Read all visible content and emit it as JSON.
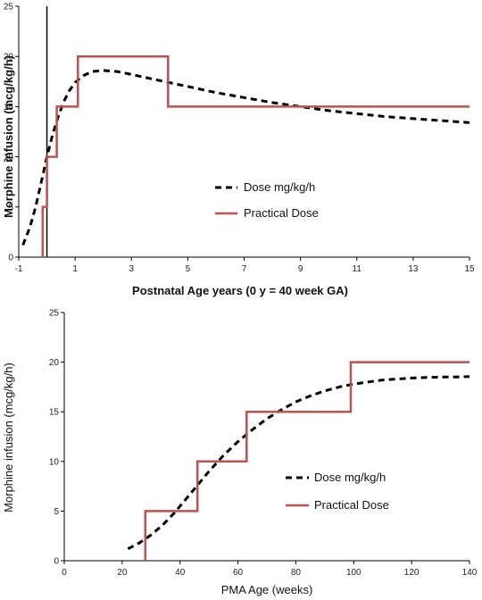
{
  "chart_data": [
    {
      "type": "line",
      "xlabel": "Postnatal Age years (0 y = 40 week GA)",
      "ylabel": "Morphine infusion (mcg/kg/h)",
      "xlim": [
        -1,
        15
      ],
      "ylim": [
        0,
        25
      ],
      "xticks": [
        -1,
        1,
        3,
        5,
        7,
        9,
        11,
        13,
        15
      ],
      "yticks": [
        0,
        5,
        10,
        15,
        20,
        25
      ],
      "grid": false,
      "legend_position": "center-left",
      "zero_line": {
        "x": 0,
        "color": "#000000"
      },
      "series": [
        {
          "name": "Dose mg/kg/h",
          "style": "dashed",
          "color": "#000000",
          "x": [
            -0.85,
            -0.6,
            -0.4,
            -0.2,
            0,
            0.2,
            0.4,
            0.6,
            0.8,
            1.0,
            1.3,
            1.6,
            2.0,
            2.5,
            3.0,
            3.5,
            4.0,
            5.0,
            6.0,
            7.0,
            8.0,
            9.0,
            10.0,
            11.0,
            12.0,
            13.0,
            14.0,
            15.0
          ],
          "y": [
            1.2,
            3.0,
            5.0,
            7.5,
            10.0,
            12.2,
            14.0,
            15.5,
            16.6,
            17.4,
            18.1,
            18.5,
            18.6,
            18.5,
            18.2,
            17.9,
            17.6,
            17.0,
            16.4,
            15.9,
            15.4,
            15.0,
            14.6,
            14.3,
            14.0,
            13.8,
            13.6,
            13.4
          ]
        },
        {
          "name": "Practical Dose",
          "style": "step",
          "color": "#c0504d",
          "x": [
            -0.15,
            -0.15,
            0.0,
            0.0,
            0.35,
            0.35,
            1.1,
            1.1,
            4.3,
            4.3,
            15.0
          ],
          "y": [
            0,
            5,
            5,
            10,
            10,
            15,
            15,
            20,
            20,
            15,
            15
          ]
        }
      ]
    },
    {
      "type": "line",
      "xlabel": "PMA Age (weeks)",
      "ylabel": "Morphine infusion (mcg/kg/h)",
      "xlim": [
        0,
        140
      ],
      "ylim": [
        0,
        25
      ],
      "xticks": [
        0,
        20,
        40,
        60,
        80,
        100,
        120,
        140
      ],
      "yticks": [
        0,
        5,
        10,
        15,
        20,
        25
      ],
      "grid": false,
      "legend_position": "center-right",
      "series": [
        {
          "name": "Dose mg/kg/h",
          "style": "dashed",
          "color": "#000000",
          "x": [
            22,
            26,
            30,
            34,
            38,
            42,
            46,
            50,
            55,
            60,
            65,
            70,
            75,
            80,
            85,
            90,
            95,
            100,
            105,
            110,
            115,
            120,
            125,
            130,
            135,
            140
          ],
          "y": [
            1.2,
            1.8,
            2.6,
            3.6,
            4.8,
            6.2,
            7.6,
            9.0,
            10.6,
            12.0,
            13.2,
            14.3,
            15.2,
            16.0,
            16.6,
            17.1,
            17.5,
            17.8,
            18.0,
            18.2,
            18.3,
            18.4,
            18.45,
            18.5,
            18.5,
            18.55
          ]
        },
        {
          "name": "Practical Dose",
          "style": "step",
          "color": "#c0504d",
          "x": [
            28,
            28,
            46,
            46,
            63,
            63,
            99,
            99,
            140
          ],
          "y": [
            0,
            5,
            5,
            10,
            10,
            15,
            15,
            20,
            20
          ]
        }
      ]
    }
  ]
}
